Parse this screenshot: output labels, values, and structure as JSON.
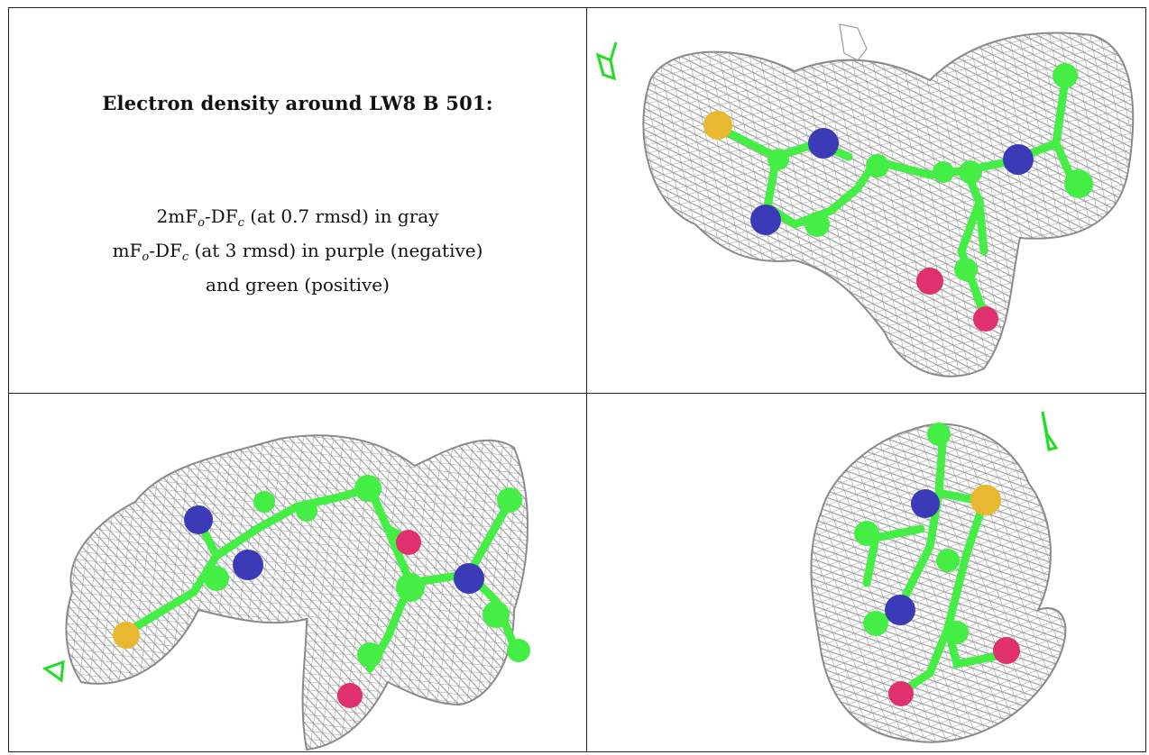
{
  "caption": {
    "title": "Electron density around LW8 B 501:",
    "line1": {
      "prefix": "2mF",
      "sub1": "o",
      "mid": "-DF",
      "sub2": "c",
      "suffix": " (at 0.7 rmsd) in gray"
    },
    "line2": {
      "prefix": "mF",
      "sub1": "o",
      "mid": "-DF",
      "sub2": "c",
      "suffix": " (at 3 rmsd) in purple (negative)"
    },
    "line3": "and green (positive)"
  },
  "panels": [
    {
      "view": "top-right",
      "subject": "ligand density view 1"
    },
    {
      "view": "bottom-left",
      "subject": "ligand density view 2"
    },
    {
      "view": "bottom-right",
      "subject": "ligand density view 3"
    }
  ],
  "colors": {
    "mesh": "#9a9a9a",
    "carbon": "#44ee44",
    "nitrogen": "#3b3bb8",
    "oxygen": "#e0306e",
    "sulfur": "#e8b830",
    "axis": "#22dd22"
  }
}
